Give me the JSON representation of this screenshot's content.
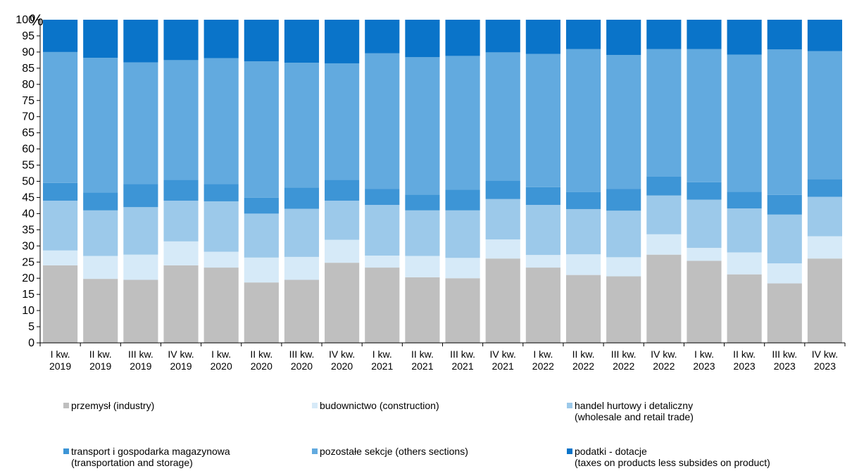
{
  "chart_data": {
    "type": "bar",
    "stacked": true,
    "unit": "%",
    "ylim": [
      0,
      100
    ],
    "yticks": [
      0,
      5,
      10,
      15,
      20,
      25,
      30,
      35,
      40,
      45,
      50,
      55,
      60,
      65,
      70,
      75,
      80,
      85,
      90,
      95,
      100
    ],
    "grid": false,
    "legend_position": "bottom",
    "categories": [
      [
        "I kw.",
        "2019"
      ],
      [
        "II kw.",
        "2019"
      ],
      [
        "III kw.",
        "2019"
      ],
      [
        "IV kw.",
        "2019"
      ],
      [
        "I kw.",
        "2020"
      ],
      [
        "II kw.",
        "2020"
      ],
      [
        "III kw.",
        "2020"
      ],
      [
        "IV kw.",
        "2020"
      ],
      [
        "I kw.",
        "2021"
      ],
      [
        "II kw.",
        "2021"
      ],
      [
        "III kw.",
        "2021"
      ],
      [
        "IV kw.",
        "2021"
      ],
      [
        "I kw.",
        "2022"
      ],
      [
        "II kw.",
        "2022"
      ],
      [
        "III kw.",
        "2022"
      ],
      [
        "IV kw.",
        "2022"
      ],
      [
        "I kw.",
        "2023"
      ],
      [
        "II kw.",
        "2023"
      ],
      [
        "III kw.",
        "2023"
      ],
      [
        "IV kw.",
        "2023"
      ]
    ],
    "series": [
      {
        "name": [
          "przemysł (industry)"
        ],
        "color": "#bfbfbf",
        "values": [
          24.0,
          19.8,
          19.5,
          24.0,
          23.3,
          18.7,
          19.5,
          24.8,
          23.3,
          20.3,
          20.0,
          26.1,
          23.3,
          21.0,
          20.6,
          27.3,
          25.4,
          21.2,
          18.4,
          26.1
        ]
      },
      {
        "name": [
          "budownictwo (construction)"
        ],
        "color": "#d6eaf8",
        "values": [
          4.6,
          7.1,
          7.8,
          7.4,
          4.9,
          7.7,
          7.1,
          7.1,
          3.7,
          6.6,
          6.3,
          5.9,
          3.9,
          6.4,
          5.9,
          6.3,
          4.0,
          6.8,
          6.2,
          6.9
        ]
      },
      {
        "name": [
          "handel hurtowy i detaliczny",
          "(wholesale and retail trade)"
        ],
        "color": "#9cc9ea",
        "values": [
          15.4,
          14.1,
          14.7,
          12.6,
          15.6,
          13.6,
          14.9,
          12.1,
          15.7,
          14.1,
          14.7,
          12.5,
          15.5,
          14.0,
          14.4,
          12.0,
          14.9,
          13.6,
          15.1,
          12.2
        ]
      },
      {
        "name": [
          "transport i gospodarka magazynowa",
          "(transportation and storage)"
        ],
        "color": "#3d95d6",
        "values": [
          5.5,
          5.5,
          7.2,
          6.5,
          5.4,
          4.9,
          6.6,
          6.5,
          4.9,
          4.9,
          6.4,
          5.7,
          5.5,
          5.3,
          6.7,
          5.9,
          5.4,
          5.2,
          6.1,
          5.5
        ]
      },
      {
        "name": [
          "pozostałe sekcje (others sections)"
        ],
        "color": "#62aadf",
        "values": [
          40.5,
          41.7,
          37.6,
          37.0,
          38.9,
          42.2,
          38.6,
          36.0,
          42.0,
          42.5,
          41.4,
          39.7,
          41.2,
          44.2,
          41.5,
          39.4,
          41.2,
          42.4,
          45.0,
          39.6
        ]
      },
      {
        "name": [
          "podatki - dotacje",
          "(taxes on products less subsides on product)"
        ],
        "color": "#0a74c9",
        "values": [
          10.0,
          11.8,
          13.2,
          12.5,
          11.9,
          12.9,
          13.3,
          13.5,
          10.4,
          11.6,
          11.2,
          10.1,
          10.6,
          9.1,
          10.9,
          9.1,
          9.1,
          10.8,
          9.2,
          9.7
        ]
      }
    ]
  }
}
